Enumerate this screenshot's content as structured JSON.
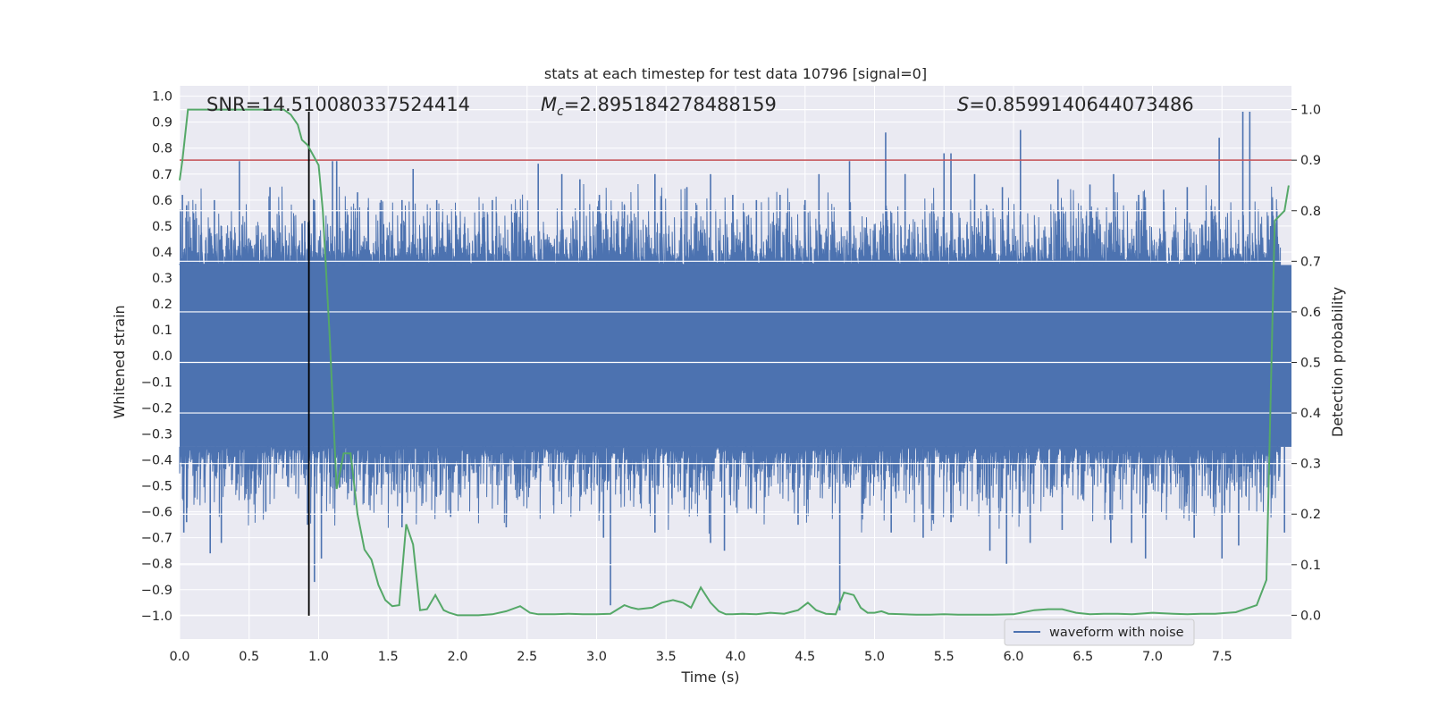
{
  "chart_data": {
    "type": "line",
    "title": "stats at each timestep for test data 10796 [signal=0]",
    "xlabel": "Time (s)",
    "ylabel": "Whitened strain",
    "ylabel_right": "Detection probability",
    "xlim": [
      0.0,
      8.0
    ],
    "ylim": [
      -1.09,
      1.04
    ],
    "ylim_right": [
      -0.047,
      1.047
    ],
    "x_ticks": [
      0.0,
      0.5,
      1.0,
      1.5,
      2.0,
      2.5,
      3.0,
      3.5,
      4.0,
      4.5,
      5.0,
      5.5,
      6.0,
      6.5,
      7.0,
      7.5
    ],
    "y_ticks": [
      -1.0,
      -0.9,
      -0.8,
      -0.7,
      -0.6,
      -0.5,
      -0.4,
      -0.3,
      -0.2,
      -0.1,
      0.0,
      0.1,
      0.2,
      0.3,
      0.4,
      0.5,
      0.6,
      0.7,
      0.8,
      0.9,
      1.0
    ],
    "y_ticks_right": [
      0.0,
      0.1,
      0.2,
      0.3,
      0.4,
      0.5,
      0.6,
      0.7,
      0.8,
      0.9,
      1.0
    ],
    "annotations": {
      "snr": "SNR=14.510080337524414",
      "mc_symbol": "M",
      "mc_sub": "c",
      "mc_value": "=2.895184278488159",
      "s_symbol": "S",
      "s_value": "=0.8599140644073486"
    },
    "legend": {
      "label": "waveform with noise",
      "placement": "lower-right"
    },
    "vertical_marker_x": 0.93,
    "threshold_right": 0.9,
    "waveform": {
      "name": "waveform with noise",
      "color": "#4c72b0",
      "core_band": [
        -0.35,
        0.35
      ],
      "spikes": [
        [
          0.02,
          0.62
        ],
        [
          0.05,
          0.58
        ],
        [
          0.1,
          0.55
        ],
        [
          0.12,
          0.53
        ],
        [
          0.25,
          0.6
        ],
        [
          0.3,
          0.5
        ],
        [
          0.43,
          0.75
        ],
        [
          0.65,
          0.65
        ],
        [
          0.9,
          0.52
        ],
        [
          0.97,
          0.6
        ],
        [
          1.1,
          0.75
        ],
        [
          1.13,
          0.75
        ],
        [
          1.28,
          0.63
        ],
        [
          1.45,
          0.6
        ],
        [
          1.6,
          0.6
        ],
        [
          1.68,
          0.72
        ],
        [
          1.85,
          0.6
        ],
        [
          2.25,
          0.6
        ],
        [
          2.42,
          0.55
        ],
        [
          2.58,
          0.74
        ],
        [
          2.75,
          0.7
        ],
        [
          2.88,
          0.68
        ],
        [
          3.02,
          0.62
        ],
        [
          3.2,
          0.58
        ],
        [
          3.42,
          0.7
        ],
        [
          3.65,
          0.65
        ],
        [
          3.82,
          0.7
        ],
        [
          3.98,
          0.62
        ],
        [
          4.15,
          0.6
        ],
        [
          4.32,
          0.62
        ],
        [
          4.5,
          0.6
        ],
        [
          4.6,
          0.7
        ],
        [
          4.82,
          0.75
        ],
        [
          5.08,
          0.86
        ],
        [
          5.22,
          0.7
        ],
        [
          5.5,
          0.78
        ],
        [
          5.55,
          0.78
        ],
        [
          5.72,
          0.7
        ],
        [
          5.92,
          0.65
        ],
        [
          6.05,
          0.87
        ],
        [
          6.32,
          0.68
        ],
        [
          6.55,
          0.66
        ],
        [
          6.72,
          0.7
        ],
        [
          6.9,
          0.62
        ],
        [
          7.08,
          0.64
        ],
        [
          7.25,
          0.65
        ],
        [
          7.48,
          0.84
        ],
        [
          7.65,
          0.94
        ],
        [
          7.7,
          0.94
        ],
        [
          7.85,
          0.5
        ],
        [
          0.03,
          -0.68
        ],
        [
          0.05,
          -0.64
        ],
        [
          0.22,
          -0.76
        ],
        [
          0.3,
          -0.72
        ],
        [
          0.62,
          -0.6
        ],
        [
          0.92,
          -0.65
        ],
        [
          0.97,
          -0.87
        ],
        [
          1.02,
          -0.78
        ],
        [
          1.6,
          -0.66
        ],
        [
          1.95,
          -0.62
        ],
        [
          2.35,
          -0.66
        ],
        [
          3.05,
          -0.7
        ],
        [
          3.1,
          -0.96
        ],
        [
          3.42,
          -0.68
        ],
        [
          3.82,
          -0.72
        ],
        [
          3.92,
          -0.75
        ],
        [
          4.45,
          -0.65
        ],
        [
          4.75,
          -0.98
        ],
        [
          5.12,
          -0.68
        ],
        [
          5.35,
          -0.7
        ],
        [
          5.55,
          -0.64
        ],
        [
          5.83,
          -0.75
        ],
        [
          5.95,
          -0.8
        ],
        [
          6.12,
          -0.72
        ],
        [
          6.35,
          -0.67
        ],
        [
          6.7,
          -0.72
        ],
        [
          6.85,
          -0.72
        ],
        [
          6.95,
          -0.78
        ],
        [
          7.3,
          -0.7
        ],
        [
          7.5,
          -0.78
        ],
        [
          7.62,
          -0.73
        ],
        [
          7.95,
          -0.68
        ]
      ]
    },
    "probability": {
      "name": "Detection probability",
      "color": "#55a868",
      "x": [
        0.0,
        0.02,
        0.06,
        0.12,
        0.25,
        0.4,
        0.6,
        0.75,
        0.8,
        0.85,
        0.88,
        0.92,
        0.96,
        1.0,
        1.03,
        1.08,
        1.13,
        1.18,
        1.23,
        1.28,
        1.33,
        1.38,
        1.43,
        1.48,
        1.53,
        1.58,
        1.63,
        1.68,
        1.73,
        1.78,
        1.84,
        1.9,
        1.94,
        2.0,
        2.06,
        2.15,
        2.25,
        2.35,
        2.45,
        2.52,
        2.58,
        2.7,
        2.8,
        2.9,
        3.0,
        3.1,
        3.2,
        3.25,
        3.3,
        3.4,
        3.47,
        3.55,
        3.62,
        3.68,
        3.75,
        3.82,
        3.88,
        3.93,
        3.98,
        4.05,
        4.15,
        4.25,
        4.35,
        4.45,
        4.52,
        4.58,
        4.65,
        4.72,
        4.78,
        4.85,
        4.9,
        4.95,
        5.0,
        5.05,
        5.1,
        5.2,
        5.3,
        5.4,
        5.5,
        5.6,
        5.7,
        5.85,
        6.0,
        6.15,
        6.25,
        6.35,
        6.45,
        6.55,
        6.65,
        6.75,
        6.85,
        7.0,
        7.15,
        7.25,
        7.35,
        7.45,
        7.6,
        7.75,
        7.82,
        7.88,
        7.95,
        7.98
      ],
      "y": [
        0.86,
        0.9,
        1.0,
        1.0,
        1.0,
        1.0,
        1.0,
        1.0,
        0.99,
        0.97,
        0.94,
        0.93,
        0.91,
        0.89,
        0.8,
        0.55,
        0.25,
        0.32,
        0.32,
        0.2,
        0.13,
        0.11,
        0.06,
        0.03,
        0.018,
        0.02,
        0.18,
        0.14,
        0.01,
        0.012,
        0.04,
        0.01,
        0.005,
        0.0,
        0.0,
        0.0,
        0.002,
        0.008,
        0.018,
        0.005,
        0.002,
        0.002,
        0.003,
        0.002,
        0.002,
        0.003,
        0.02,
        0.015,
        0.012,
        0.015,
        0.025,
        0.03,
        0.025,
        0.015,
        0.055,
        0.025,
        0.008,
        0.002,
        0.002,
        0.003,
        0.002,
        0.005,
        0.003,
        0.01,
        0.025,
        0.01,
        0.003,
        0.002,
        0.045,
        0.04,
        0.015,
        0.005,
        0.005,
        0.008,
        0.003,
        0.002,
        0.001,
        0.001,
        0.002,
        0.001,
        0.001,
        0.001,
        0.002,
        0.01,
        0.012,
        0.012,
        0.005,
        0.002,
        0.003,
        0.003,
        0.002,
        0.005,
        0.003,
        0.002,
        0.003,
        0.003,
        0.006,
        0.02,
        0.07,
        0.78,
        0.8,
        0.85
      ]
    }
  }
}
